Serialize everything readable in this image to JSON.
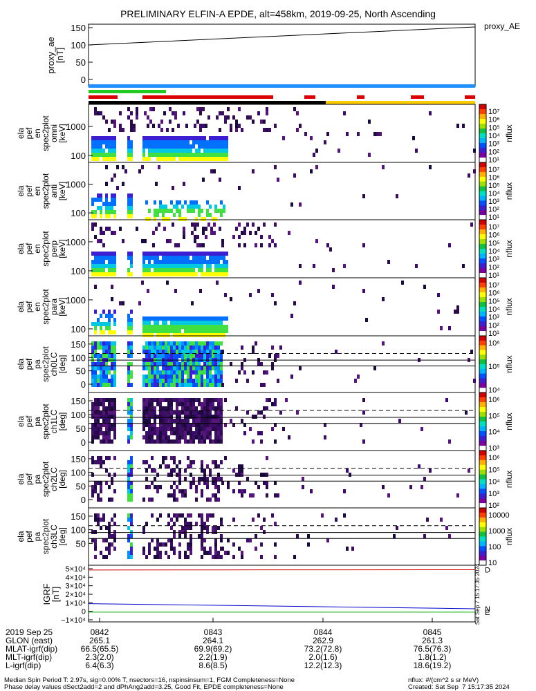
{
  "title": "PRELIMINARY ELFIN-A EPDE, alt=458km, 2019-09-25, North Ascending",
  "chart_data": [
    {
      "type": "line",
      "ylabel": [
        "proxy_ae",
        "[nT]"
      ],
      "yticks": [
        "150",
        "100",
        "50",
        "0"
      ],
      "ylim": [
        0,
        150
      ],
      "series_label": "proxy_AE",
      "series": [
        {
          "name": "proxy_AE",
          "x": [
            0,
            1
          ],
          "values": [
            100,
            152
          ]
        }
      ]
    },
    {
      "type": "heatmap",
      "panels": [
        {
          "ylabel": [
            "ela",
            "pef",
            "en",
            "spec2plot",
            "omni",
            "[keV]"
          ],
          "yticks": [
            "1000",
            "100"
          ],
          "cbar": [
            "10⁷",
            "10⁶",
            "10⁵",
            "10⁴",
            "10³",
            "10²",
            "10¹"
          ],
          "cbar_title": "nflux"
        },
        {
          "ylabel": [
            "ela",
            "pef",
            "en",
            "spec2plot",
            "anti",
            "[keV]"
          ],
          "yticks": [
            "1000",
            "100"
          ],
          "cbar": [
            "10⁷",
            "10⁶",
            "10⁵",
            "10⁴",
            "10³",
            "10²",
            "10¹"
          ],
          "cbar_title": "nflux"
        },
        {
          "ylabel": [
            "ela",
            "pef",
            "en",
            "spec2plot",
            "perp",
            "[keV]"
          ],
          "yticks": [
            "1000",
            "100"
          ],
          "cbar": [
            "10⁷",
            "10⁶",
            "10⁵",
            "10⁴",
            "10³",
            "10²",
            "10¹"
          ],
          "cbar_title": "nflux"
        },
        {
          "ylabel": [
            "ela",
            "pef",
            "en",
            "spec2plot",
            "para",
            "[keV]"
          ],
          "yticks": [
            "1000",
            "100"
          ],
          "cbar": [
            "10⁷",
            "10⁶",
            "10⁵",
            "10⁴",
            "10³",
            "10²",
            "10¹"
          ],
          "cbar_title": "nflux"
        },
        {
          "ylabel": [
            "ela",
            "pef",
            "pa",
            "spec2plot",
            "ch0LC",
            "[deg]"
          ],
          "yticks": [
            "150",
            "100",
            "50",
            "0"
          ],
          "cbar": [
            "10⁶",
            "10⁵",
            "10⁴"
          ],
          "cbar_title": "nflux"
        },
        {
          "ylabel": [
            "ela",
            "pef",
            "pa",
            "spec2plot",
            "ch1LC",
            "[deg]"
          ],
          "yticks": [
            "150",
            "100",
            "50",
            "0"
          ],
          "cbar": [
            "10⁶",
            "10⁵",
            "10⁴",
            "10³"
          ],
          "cbar_title": "nflux"
        },
        {
          "ylabel": [
            "ela",
            "pef",
            "pa",
            "spec2plot",
            "ch2LC",
            "[deg]"
          ],
          "yticks": [
            "150",
            "100",
            "50",
            "0"
          ],
          "cbar": [
            "10⁶",
            "10⁵",
            "10⁴",
            "10³",
            "10²"
          ],
          "cbar_title": "nflux"
        },
        {
          "ylabel": [
            "ela",
            "pef",
            "pa",
            "spec2plot",
            "ch3LC",
            "[deg]"
          ],
          "yticks": [
            "150",
            "100",
            "50"
          ],
          "cbar": [
            "10000",
            "1000",
            "100",
            "10"
          ],
          "cbar_title": "nflux"
        }
      ]
    },
    {
      "type": "line",
      "ylabel": [
        "IGRF",
        "[nT]"
      ],
      "yticks": [
        "5×10⁴",
        "4×10⁴",
        "3×10⁴",
        "2×10⁴",
        "1×10⁴",
        "0",
        "−1×10⁴"
      ],
      "ylim": [
        -10000,
        50000
      ],
      "series": [
        {
          "name": "D",
          "color": "#cc0000",
          "values": [
            48500,
            48600,
            48700,
            48800
          ]
        },
        {
          "name": "N",
          "color": "#0000cc",
          "values": [
            9000,
            7000,
            5000,
            3000
          ]
        },
        {
          "name": "E",
          "color": "#00aa00",
          "values": [
            -1000,
            -1000,
            -1000,
            -1000
          ]
        }
      ],
      "side_text": "Sat Sep 7 15:17:35 2024"
    }
  ],
  "xaxis": {
    "date": "2019 Sep 25",
    "ticks": [
      "0842",
      "0843",
      "0844",
      "0845"
    ],
    "rows": [
      {
        "label": "GLON (east)",
        "values": [
          "265.1",
          "264.1",
          "262.9",
          "261.3"
        ]
      },
      {
        "label": "MLAT-igrf(dip)",
        "values": [
          "66.5(65.5)",
          "69.9(69.2)",
          "73.2(72.8)",
          "76.5(76.3)"
        ]
      },
      {
        "label": "MLT-igrf(dip)",
        "values": [
          "2.3(2.0)",
          "2.2(1.9)",
          "2.0(1.6)",
          "1.8(1.2)"
        ]
      },
      {
        "label": "L-igrf(dip)",
        "values": [
          "6.4(6.3)",
          "8.6(8.5)",
          "12.2(12.3)",
          "18.6(19.2)"
        ]
      }
    ]
  },
  "footer": {
    "line1": "Median Spin Period T: 2.97s, sig=0.00% T, nsectors=16, nspinsinsum=1, FGM Completeness=None",
    "line2": "Phase delay values dSect2add=2 and dPhAng2add=3.25, Good Fit, EPDE completeness=None",
    "units": "nflux: #/(cm^2 s sr MeV)",
    "created": "Created: Sat Sep  7 15:17:35 2024"
  }
}
